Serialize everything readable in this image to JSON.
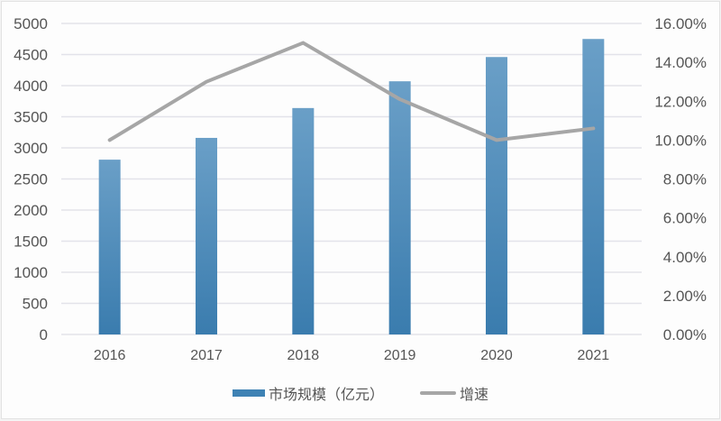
{
  "chart_data": {
    "type": "bar+line",
    "title": "",
    "categories": [
      "2016",
      "2017",
      "2018",
      "2019",
      "2020",
      "2021"
    ],
    "series": [
      {
        "name": "市场规模（亿元）",
        "type": "bar",
        "axis": "left",
        "values": [
          2810,
          3160,
          3640,
          4070,
          4460,
          4750
        ],
        "color": "#3e82b4"
      },
      {
        "name": "增速",
        "type": "line",
        "axis": "right",
        "values": [
          10.0,
          13.0,
          15.0,
          12.1,
          10.0,
          10.6
        ],
        "color": "#a6a6a6"
      }
    ],
    "left_axis": {
      "ylim": [
        0,
        5000
      ],
      "ticks": [
        "0",
        "500",
        "1000",
        "1500",
        "2000",
        "2500",
        "3000",
        "3500",
        "4000",
        "4500",
        "5000"
      ]
    },
    "right_axis": {
      "ylim": [
        0,
        16
      ],
      "ticks": [
        "0.00%",
        "2.00%",
        "4.00%",
        "6.00%",
        "8.00%",
        "10.00%",
        "12.00%",
        "14.00%",
        "16.00%"
      ]
    },
    "xlabel": "",
    "ylabel": "",
    "grid": true,
    "legend_position": "bottom"
  },
  "legend": {
    "bar_label": "市场规模（亿元）",
    "line_label": "增速"
  }
}
